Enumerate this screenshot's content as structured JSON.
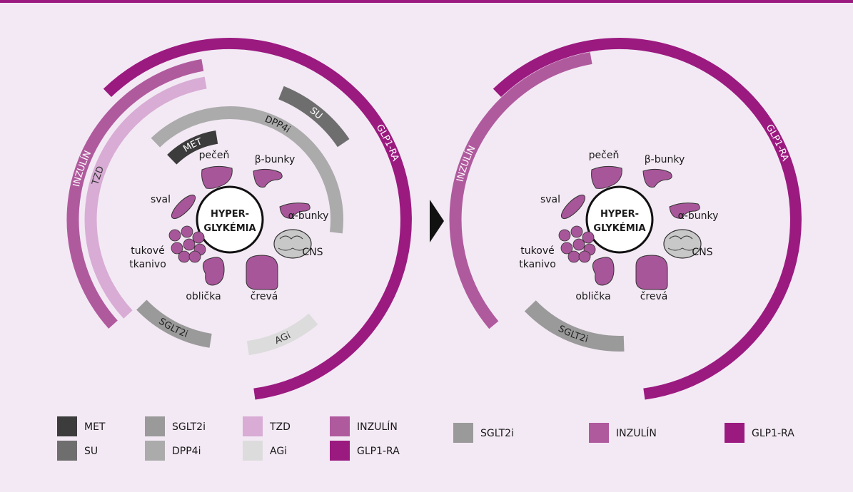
{
  "left": {
    "center_lines": [
      "HYPER-",
      "GLYKÉMIA"
    ],
    "organs": [
      "pečeň",
      "β-bunky",
      "α-bunky",
      "CNS",
      "črevá",
      "oblička",
      "sval"
    ],
    "fat_tissue": [
      "tukové",
      "tkanivo"
    ],
    "arcs": [
      {
        "label": "GLP1-RA",
        "color": "#9b1a80"
      },
      {
        "label": "INZULÍN",
        "color": "#b05a9e"
      },
      {
        "label": "TZD",
        "color": "#d8acd5"
      },
      {
        "label": "SU",
        "color": "#6e6e6e"
      },
      {
        "label": "DPP4i",
        "color": "#ababab"
      },
      {
        "label": "MET",
        "color": "#3c3c3c"
      },
      {
        "label": "SGLT2i",
        "color": "#9a9a9a"
      },
      {
        "label": "AGi",
        "color": "#dcdcdc"
      }
    ],
    "legend": [
      {
        "label": "MET",
        "color": "#3c3c3c"
      },
      {
        "label": "SU",
        "color": "#6e6e6e"
      },
      {
        "label": "SGLT2i",
        "color": "#9a9a9a"
      },
      {
        "label": "DPP4i",
        "color": "#ababab"
      },
      {
        "label": "TZD",
        "color": "#d8acd5"
      },
      {
        "label": "AGi",
        "color": "#dcdcdc"
      },
      {
        "label": "INZULÍN",
        "color": "#b05a9e"
      },
      {
        "label": "GLP1-RA",
        "color": "#9b1a80"
      }
    ]
  },
  "right": {
    "center_lines": [
      "HYPER-",
      "GLYKÉMIA"
    ],
    "organs": [
      "pečeň",
      "β-bunky",
      "α-bunky",
      "CNS",
      "črevá",
      "oblička",
      "sval"
    ],
    "fat_tissue": [
      "tukové",
      "tkanivo"
    ],
    "arcs": [
      {
        "label": "GLP1-RA",
        "color": "#9b1a80"
      },
      {
        "label": "INZULÍN",
        "color": "#b05a9e"
      },
      {
        "label": "SGLT2i",
        "color": "#9a9a9a"
      }
    ],
    "legend": [
      {
        "label": "SGLT2i",
        "color": "#9a9a9a"
      },
      {
        "label": "INZULÍN",
        "color": "#b05a9e"
      },
      {
        "label": "GLP1-RA",
        "color": "#9b1a80"
      }
    ]
  }
}
